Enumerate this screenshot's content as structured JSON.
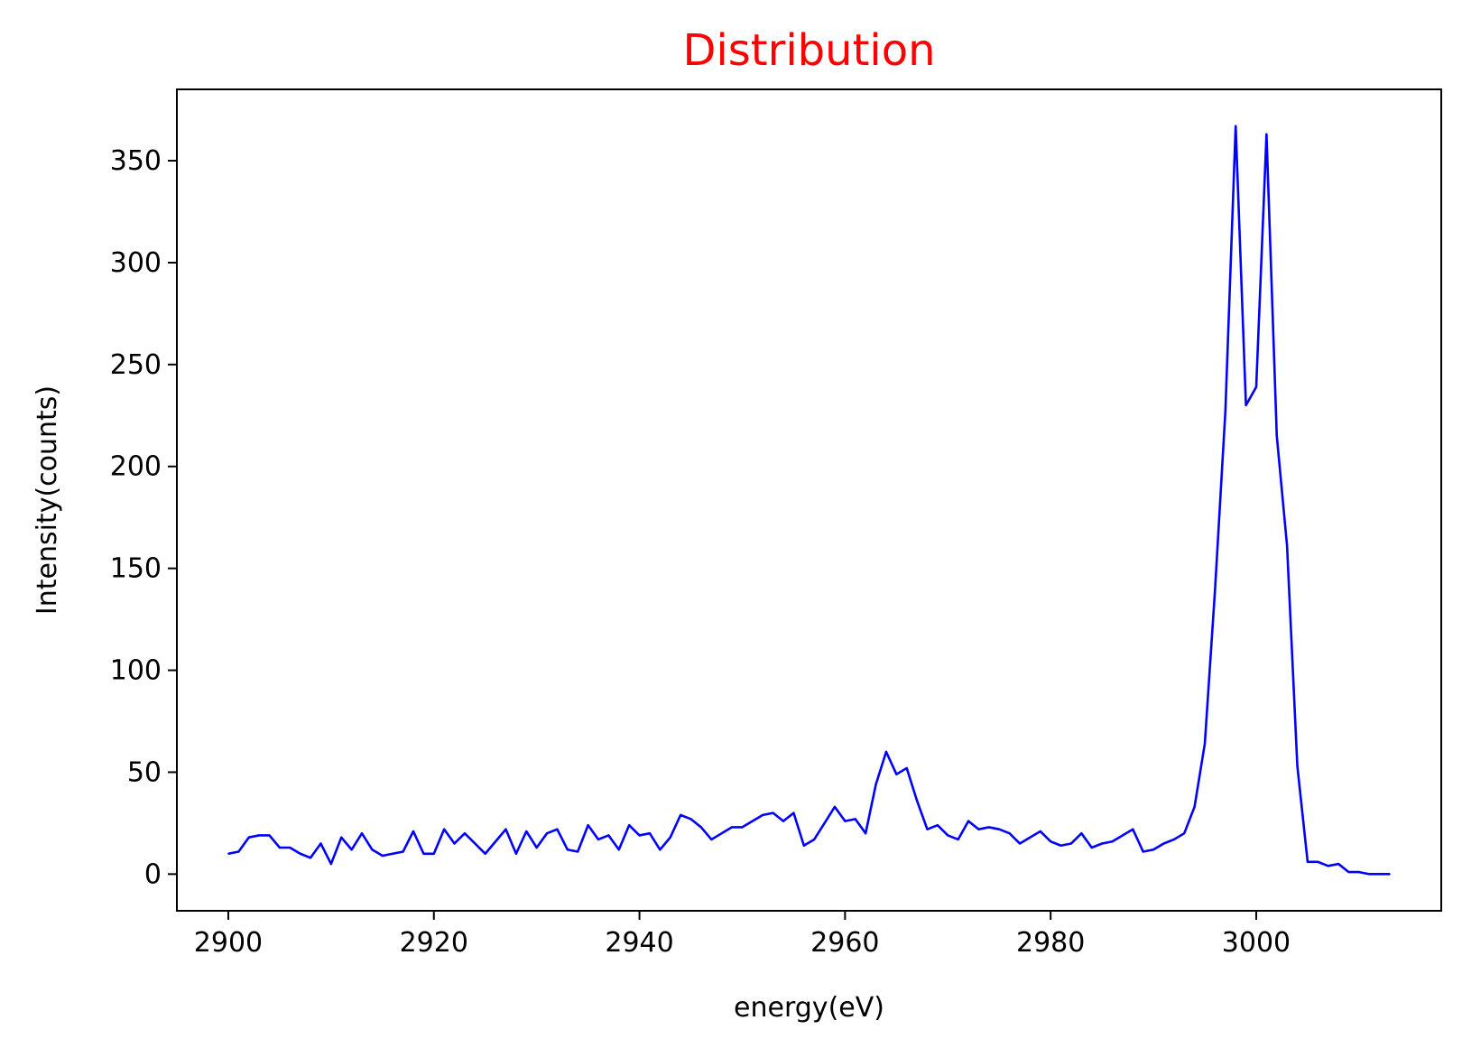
{
  "chart_data": {
    "type": "line",
    "title": "Distribution",
    "xlabel": "energy(eV)",
    "ylabel": "Intensity(counts)",
    "xlim": [
      2895,
      3018
    ],
    "ylim": [
      -18,
      385
    ],
    "xticks": [
      2900,
      2920,
      2940,
      2960,
      2980,
      3000
    ],
    "yticks": [
      0,
      50,
      100,
      150,
      200,
      250,
      300,
      350
    ],
    "grid": false,
    "colors": {
      "title": "#ff0000",
      "line": "#0000ff",
      "axes": "#000000"
    },
    "series": [
      {
        "x": [
          2900,
          2901,
          2902,
          2903,
          2904,
          2905,
          2906,
          2907,
          2908,
          2909,
          2910,
          2911,
          2912,
          2913,
          2914,
          2915,
          2916,
          2917,
          2918,
          2919,
          2920,
          2921,
          2922,
          2923,
          2924,
          2925,
          2926,
          2927,
          2928,
          2929,
          2930,
          2931,
          2932,
          2933,
          2934,
          2935,
          2936,
          2937,
          2938,
          2939,
          2940,
          2941,
          2942,
          2943,
          2944,
          2945,
          2946,
          2947,
          2948,
          2949,
          2950,
          2951,
          2952,
          2953,
          2954,
          2955,
          2956,
          2957,
          2958,
          2959,
          2960,
          2961,
          2962,
          2963,
          2964,
          2965,
          2966,
          2967,
          2968,
          2969,
          2970,
          2971,
          2972,
          2973,
          2974,
          2975,
          2976,
          2977,
          2978,
          2979,
          2980,
          2981,
          2982,
          2983,
          2984,
          2985,
          2986,
          2987,
          2988,
          2989,
          2990,
          2991,
          2992,
          2993,
          2994,
          2995,
          2996,
          2997,
          2998,
          2999,
          3000,
          3001,
          3002,
          3003,
          3004,
          3005,
          3006,
          3007,
          3008,
          3009,
          3010,
          3011,
          3012,
          3013
        ],
        "values": [
          10,
          11,
          18,
          19,
          19,
          13,
          13,
          10,
          8,
          15,
          5,
          18,
          12,
          20,
          12,
          9,
          10,
          11,
          21,
          10,
          10,
          22,
          15,
          20,
          15,
          10,
          16,
          22,
          10,
          21,
          13,
          20,
          22,
          12,
          11,
          24,
          17,
          19,
          12,
          24,
          19,
          20,
          12,
          18,
          29,
          27,
          23,
          17,
          20,
          23,
          23,
          26,
          29,
          30,
          26,
          30,
          14,
          17,
          25,
          33,
          26,
          27,
          20,
          44,
          60,
          49,
          52,
          36,
          22,
          24,
          19,
          17,
          26,
          22,
          23,
          22,
          20,
          15,
          18,
          21,
          16,
          14,
          15,
          20,
          13,
          15,
          16,
          19,
          22,
          11,
          12,
          15,
          17,
          20,
          33,
          64,
          140,
          227,
          367,
          230,
          239,
          363,
          215,
          161,
          53,
          6,
          6,
          4,
          5,
          1,
          1,
          0,
          0,
          0
        ]
      }
    ]
  }
}
